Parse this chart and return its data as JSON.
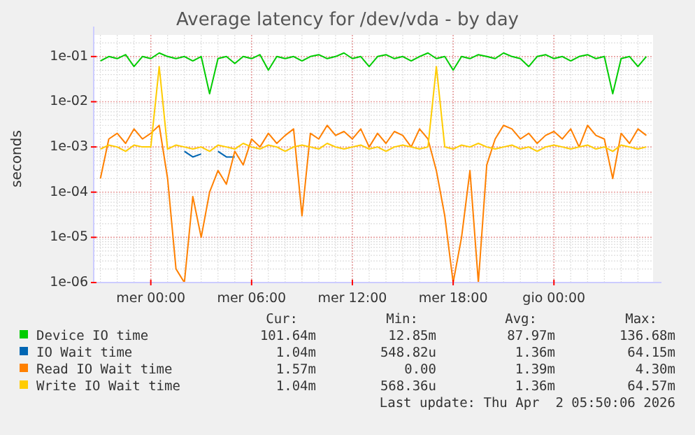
{
  "chart_data": {
    "type": "line",
    "title": "Average latency for /dev/vda - by day",
    "ylabel": "seconds",
    "log": "y",
    "grid": true,
    "legend": "bottom",
    "xlim": [
      "2026-03-31T20:36",
      "2026-04-02T05:54"
    ],
    "ylim": [
      1e-06,
      0.3
    ],
    "xticks": [
      {
        "value": "2026-04-01T00:00",
        "label": "mer 00:00"
      },
      {
        "value": "2026-04-01T06:00",
        "label": "mer 06:00"
      },
      {
        "value": "2026-04-01T12:00",
        "label": "mer 12:00"
      },
      {
        "value": "2026-04-01T18:00",
        "label": "mer 18:00"
      },
      {
        "value": "2026-04-02T00:00",
        "label": "gio 00:00"
      }
    ],
    "yticks": [
      {
        "value": 1e-06,
        "label": "1e-06"
      },
      {
        "value": 1e-05,
        "label": "1e-05"
      },
      {
        "value": 0.0001,
        "label": "1e-04"
      },
      {
        "value": 0.001,
        "label": "1e-03"
      },
      {
        "value": 0.01,
        "label": "1e-02"
      },
      {
        "value": 0.1,
        "label": "1e-01"
      }
    ],
    "x": [
      "2026-03-31T21:00",
      "2026-03-31T21:30",
      "2026-03-31T22:00",
      "2026-03-31T22:30",
      "2026-03-31T23:00",
      "2026-03-31T23:30",
      "2026-04-01T00:00",
      "2026-04-01T00:30",
      "2026-04-01T01:00",
      "2026-04-01T01:30",
      "2026-04-01T02:00",
      "2026-04-01T02:30",
      "2026-04-01T03:00",
      "2026-04-01T03:30",
      "2026-04-01T04:00",
      "2026-04-01T04:30",
      "2026-04-01T05:00",
      "2026-04-01T05:30",
      "2026-04-01T06:00",
      "2026-04-01T06:30",
      "2026-04-01T07:00",
      "2026-04-01T07:30",
      "2026-04-01T08:00",
      "2026-04-01T08:30",
      "2026-04-01T09:00",
      "2026-04-01T09:30",
      "2026-04-01T10:00",
      "2026-04-01T10:30",
      "2026-04-01T11:00",
      "2026-04-01T11:30",
      "2026-04-01T12:00",
      "2026-04-01T12:30",
      "2026-04-01T13:00",
      "2026-04-01T13:30",
      "2026-04-01T14:00",
      "2026-04-01T14:30",
      "2026-04-01T15:00",
      "2026-04-01T15:30",
      "2026-04-01T16:00",
      "2026-04-01T16:30",
      "2026-04-01T17:00",
      "2026-04-01T17:30",
      "2026-04-01T18:00",
      "2026-04-01T18:30",
      "2026-04-01T19:00",
      "2026-04-01T19:30",
      "2026-04-01T20:00",
      "2026-04-01T20:30",
      "2026-04-01T21:00",
      "2026-04-01T21:30",
      "2026-04-01T22:00",
      "2026-04-01T22:30",
      "2026-04-01T23:00",
      "2026-04-01T23:30",
      "2026-04-02T00:00",
      "2026-04-02T00:30",
      "2026-04-02T01:00",
      "2026-04-02T01:30",
      "2026-04-02T02:00",
      "2026-04-02T02:30",
      "2026-04-02T03:00",
      "2026-04-02T03:30",
      "2026-04-02T04:00",
      "2026-04-02T04:30",
      "2026-04-02T05:00",
      "2026-04-02T05:30"
    ],
    "series": [
      {
        "name": "Device IO time",
        "color": "#00cc00",
        "values": [
          0.08,
          0.1,
          0.09,
          0.11,
          0.06,
          0.1,
          0.09,
          0.12,
          0.1,
          0.09,
          0.1,
          0.08,
          0.1,
          0.015,
          0.09,
          0.1,
          0.07,
          0.1,
          0.09,
          0.11,
          0.05,
          0.1,
          0.09,
          0.1,
          0.08,
          0.1,
          0.11,
          0.09,
          0.1,
          0.12,
          0.09,
          0.1,
          0.06,
          0.1,
          0.11,
          0.09,
          0.1,
          0.08,
          0.1,
          0.12,
          0.09,
          0.1,
          0.05,
          0.1,
          0.09,
          0.11,
          0.1,
          0.09,
          0.12,
          0.1,
          0.09,
          0.06,
          0.1,
          0.11,
          0.09,
          0.1,
          0.08,
          0.1,
          0.11,
          0.09,
          0.1,
          0.015,
          0.09,
          0.1,
          0.06,
          0.1
        ]
      },
      {
        "name": "IO Wait time",
        "color": "#0066b3",
        "values": [
          null,
          null,
          null,
          null,
          null,
          null,
          null,
          null,
          null,
          null,
          0.0008,
          0.0006,
          0.0007,
          null,
          0.0008,
          0.0006,
          0.0006,
          null,
          null,
          null,
          null,
          null,
          null,
          null,
          null,
          null,
          null,
          null,
          null,
          null,
          null,
          null,
          null,
          null,
          null,
          null,
          null,
          null,
          null,
          null,
          null,
          null,
          null,
          null,
          null,
          null,
          null,
          null,
          null,
          null,
          null,
          null,
          null,
          null,
          null,
          null,
          null,
          null,
          null,
          null,
          null,
          null,
          null,
          null,
          null,
          null
        ]
      },
      {
        "name": "Read IO Wait time",
        "color": "#ff8000",
        "values": [
          0.0002,
          0.0015,
          0.002,
          0.0012,
          0.0025,
          0.0015,
          0.002,
          0.003,
          0.0002,
          2e-06,
          1e-06,
          8e-05,
          1e-05,
          0.0001,
          0.0003,
          0.00015,
          0.0008,
          0.0004,
          0.0015,
          0.001,
          0.002,
          0.0012,
          0.0018,
          0.0025,
          3e-05,
          0.002,
          0.0015,
          0.003,
          0.0018,
          0.0022,
          0.0015,
          0.0025,
          0.001,
          0.002,
          0.0012,
          0.0022,
          0.0018,
          0.001,
          0.0025,
          0.0015,
          0.0003,
          3e-05,
          1e-06,
          1e-05,
          0.0003,
          1e-06,
          0.0004,
          0.0015,
          0.003,
          0.0025,
          0.0015,
          0.002,
          0.0012,
          0.0018,
          0.0022,
          0.0015,
          0.0025,
          0.001,
          0.003,
          0.0018,
          0.0015,
          0.0002,
          0.002,
          0.0012,
          0.0025,
          0.0018
        ]
      },
      {
        "name": "Write IO Wait time",
        "color": "#ffcc00",
        "values": [
          0.0009,
          0.0011,
          0.001,
          0.0008,
          0.0011,
          0.001,
          0.001,
          0.06,
          0.0009,
          0.0011,
          0.001,
          0.0009,
          0.001,
          0.0008,
          0.0011,
          0.001,
          0.0009,
          0.0012,
          0.001,
          0.0009,
          0.0011,
          0.001,
          0.0008,
          0.001,
          0.0011,
          0.001,
          0.0009,
          0.0012,
          0.001,
          0.0009,
          0.001,
          0.0011,
          0.0009,
          0.001,
          0.0008,
          0.001,
          0.0011,
          0.001,
          0.0009,
          0.001,
          0.06,
          0.001,
          0.0009,
          0.0011,
          0.001,
          0.0012,
          0.001,
          0.0009,
          0.001,
          0.0011,
          0.0009,
          0.001,
          0.0008,
          0.001,
          0.0011,
          0.001,
          0.0009,
          0.001,
          0.0011,
          0.0009,
          0.001,
          0.0008,
          0.0011,
          0.001,
          0.0009,
          0.001
        ]
      }
    ],
    "annotations": [
      "Cur:",
      "Min:",
      "Avg:",
      "Max:",
      "101.64m",
      "12.85m",
      "87.97m",
      "136.68m",
      "1.04m",
      "548.82u",
      "1.36m",
      "64.15m",
      "1.57m",
      "0.00",
      "1.39m",
      "4.30m",
      "1.04m",
      "568.36u",
      "1.36m",
      "64.57m",
      "Last update: Thu Apr  2 05:50:06 2026"
    ]
  }
}
